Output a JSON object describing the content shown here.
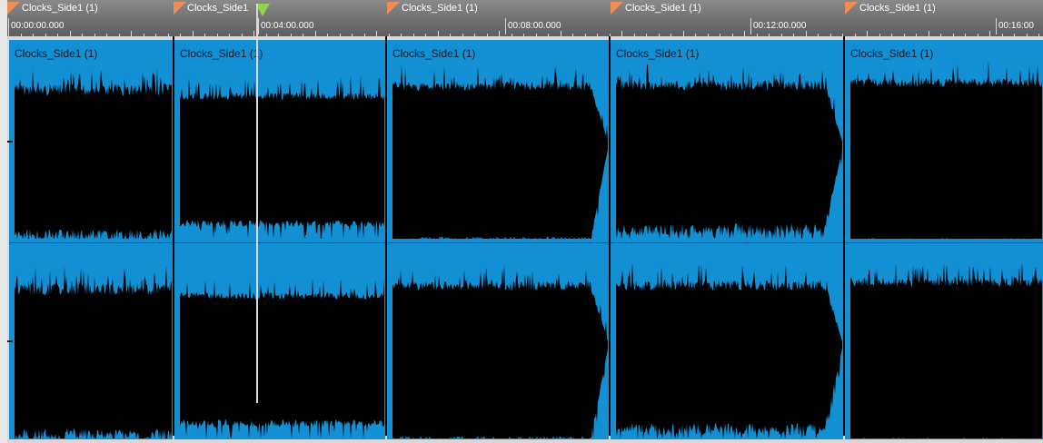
{
  "ruler": {
    "markers": [
      {
        "label": "Clocks_Side1 (1)"
      },
      {
        "label": "Clocks_Side1"
      },
      {
        "label": "Clocks_Side1 (1)"
      },
      {
        "label": "Clocks_Side1 (1)"
      },
      {
        "label": "Clocks_Side1 (1)"
      }
    ],
    "timecodes": [
      "00:00:00.000",
      "00:04:00.000",
      "00:08:00.000",
      "00:12:00.000",
      "00:16:00"
    ]
  },
  "clips": [
    {
      "title": "Clocks_Side1 (1)"
    },
    {
      "title": "Clocks_Side1 (1)"
    },
    {
      "title": "Clocks_Side1 (1)"
    },
    {
      "title": "Clocks_Side1 (1)"
    },
    {
      "title": "Clocks_Side1 (1)"
    }
  ],
  "colors": {
    "clip_background": "#138fd3",
    "waveform": "#000000",
    "marker_flag": "#f08c56",
    "playhead_flag": "#8fd34c"
  },
  "icons": {
    "marker": "marker-flag-icon",
    "playhead": "playhead-triangle-icon"
  }
}
